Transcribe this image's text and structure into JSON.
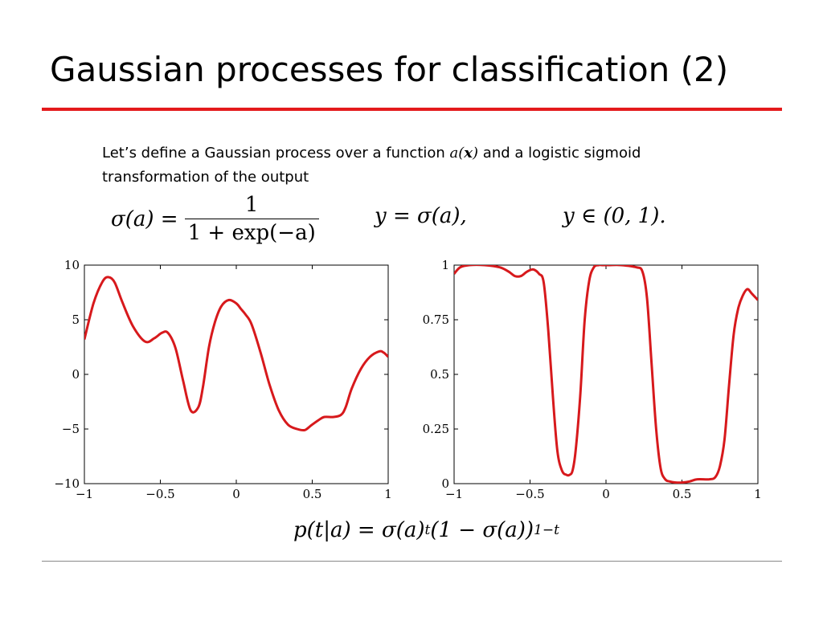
{
  "slide": {
    "title": "Gaussian processes for classification (2)",
    "accent_color": "#e41a1c"
  },
  "text": {
    "part1": "Let’s define a Gaussian process over a function ",
    "a": "a",
    "paren_open": "(",
    "x": "x",
    "paren_close": ")",
    "part2": " and a logistic sigmoid transformation of the output"
  },
  "formulas": {
    "sigma_lhs": "σ(a) =",
    "sigma_num": "1",
    "sigma_den": "1 + exp(−a)",
    "y_def": "y = σ(a),",
    "y_range": "y ∈ (0, 1).",
    "lik_lhs": "p(t|a) = σ(a)",
    "lik_t": "t",
    "lik_mid": "(1 − σ(a))",
    "lik_exp": "1−t"
  },
  "chart_data": [
    {
      "type": "line",
      "color": "#d7191c",
      "xlim": [
        -1,
        1
      ],
      "ylim": [
        -10,
        10
      ],
      "xticks": [
        "−1",
        "−0.5",
        "0",
        "0.5",
        "1"
      ],
      "xtick_values": [
        -1,
        -0.5,
        0,
        0.5,
        1
      ],
      "yticks": [
        "10",
        "5",
        "0",
        "−5",
        "−10"
      ],
      "ytick_values": [
        10,
        5,
        0,
        -5,
        -10
      ],
      "grid": false,
      "x": [
        -1.0,
        -0.94,
        -0.88,
        -0.84,
        -0.8,
        -0.75,
        -0.68,
        -0.6,
        -0.54,
        -0.49,
        -0.45,
        -0.4,
        -0.35,
        -0.3,
        -0.25,
        -0.22,
        -0.18,
        -0.14,
        -0.1,
        -0.05,
        0.0,
        0.03,
        0.06,
        0.1,
        0.16,
        0.22,
        0.28,
        0.34,
        0.4,
        0.45,
        0.49,
        0.54,
        0.58,
        0.64,
        0.69,
        0.72,
        0.76,
        0.82,
        0.88,
        0.94,
        0.97,
        1.0
      ],
      "y": [
        3.2,
        6.5,
        8.5,
        8.9,
        8.4,
        6.6,
        4.4,
        3.0,
        3.3,
        3.8,
        3.8,
        2.4,
        -0.6,
        -3.3,
        -3.0,
        -1.2,
        2.5,
        4.8,
        6.2,
        6.8,
        6.5,
        6.0,
        5.5,
        4.6,
        2.0,
        -1.0,
        -3.3,
        -4.6,
        -5.0,
        -5.1,
        -4.7,
        -4.2,
        -3.9,
        -3.9,
        -3.7,
        -3.0,
        -1.3,
        0.5,
        1.6,
        2.1,
        2.0,
        1.6
      ]
    },
    {
      "type": "line",
      "color": "#d7191c",
      "xlim": [
        -1,
        1
      ],
      "ylim": [
        0,
        1
      ],
      "xticks": [
        "−1",
        "−0.5",
        "0",
        "0.5",
        "1"
      ],
      "xtick_values": [
        -1,
        -0.5,
        0,
        0.5,
        1
      ],
      "yticks": [
        "1",
        "0.75",
        "0.5",
        "0.25",
        "0"
      ],
      "ytick_values": [
        1,
        0.75,
        0.5,
        0.25,
        0
      ],
      "grid": false,
      "x": [
        -1.0,
        -0.96,
        -0.9,
        -0.8,
        -0.7,
        -0.64,
        -0.6,
        -0.56,
        -0.52,
        -0.48,
        -0.44,
        -0.41,
        -0.38,
        -0.35,
        -0.32,
        -0.29,
        -0.26,
        -0.24,
        -0.22,
        -0.2,
        -0.17,
        -0.14,
        -0.11,
        -0.08,
        -0.05,
        -0.02,
        0.02,
        0.1,
        0.2,
        0.24,
        0.27,
        0.3,
        0.33,
        0.36,
        0.39,
        0.42,
        0.46,
        0.5,
        0.55,
        0.6,
        0.68,
        0.72,
        0.75,
        0.78,
        0.81,
        0.84,
        0.87,
        0.9,
        0.93,
        0.96,
        1.0
      ],
      "y": [
        0.96,
        0.99,
        1.0,
        1.0,
        0.99,
        0.97,
        0.95,
        0.95,
        0.97,
        0.98,
        0.96,
        0.92,
        0.7,
        0.4,
        0.15,
        0.06,
        0.04,
        0.04,
        0.06,
        0.15,
        0.4,
        0.75,
        0.93,
        0.99,
        1.0,
        1.0,
        1.0,
        1.0,
        0.99,
        0.97,
        0.85,
        0.55,
        0.25,
        0.07,
        0.02,
        0.01,
        0.005,
        0.005,
        0.01,
        0.02,
        0.02,
        0.03,
        0.08,
        0.2,
        0.45,
        0.68,
        0.8,
        0.86,
        0.89,
        0.87,
        0.84
      ]
    }
  ]
}
